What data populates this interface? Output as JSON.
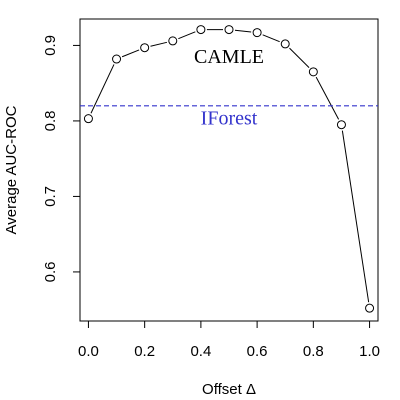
{
  "chart_data": {
    "type": "line",
    "xlabel": "Offset Δ",
    "ylabel": "Average AUC-ROC",
    "xlim": [
      -0.03,
      1.03
    ],
    "ylim": [
      0.535,
      0.935
    ],
    "x_ticks": [
      0.0,
      0.2,
      0.4,
      0.6,
      0.8,
      1.0
    ],
    "x_tick_labels": [
      "0.0",
      "0.2",
      "0.4",
      "0.6",
      "0.8",
      "1.0"
    ],
    "y_ticks": [
      0.6,
      0.7,
      0.8,
      0.9
    ],
    "y_tick_labels": [
      "0.6",
      "0.7",
      "0.8",
      "0.9"
    ],
    "grid": false,
    "series": [
      {
        "name": "CAMLE",
        "style": "line-with-open-circles",
        "color": "#000000",
        "x": [
          0.0,
          0.1,
          0.2,
          0.3,
          0.4,
          0.5,
          0.6,
          0.7,
          0.8,
          0.9,
          1.0
        ],
        "y": [
          0.803,
          0.882,
          0.897,
          0.906,
          0.921,
          0.921,
          0.917,
          0.902,
          0.865,
          0.795,
          0.552
        ]
      },
      {
        "name": "IForest",
        "style": "dashed-horizontal",
        "color": "#3333cc",
        "y": 0.82
      }
    ],
    "annotations": [
      {
        "text": "CAMLE",
        "x": 0.5,
        "y": 0.877,
        "color": "#000000"
      },
      {
        "text": "IForest",
        "x": 0.5,
        "y": 0.795,
        "color": "#3333cc"
      }
    ]
  }
}
